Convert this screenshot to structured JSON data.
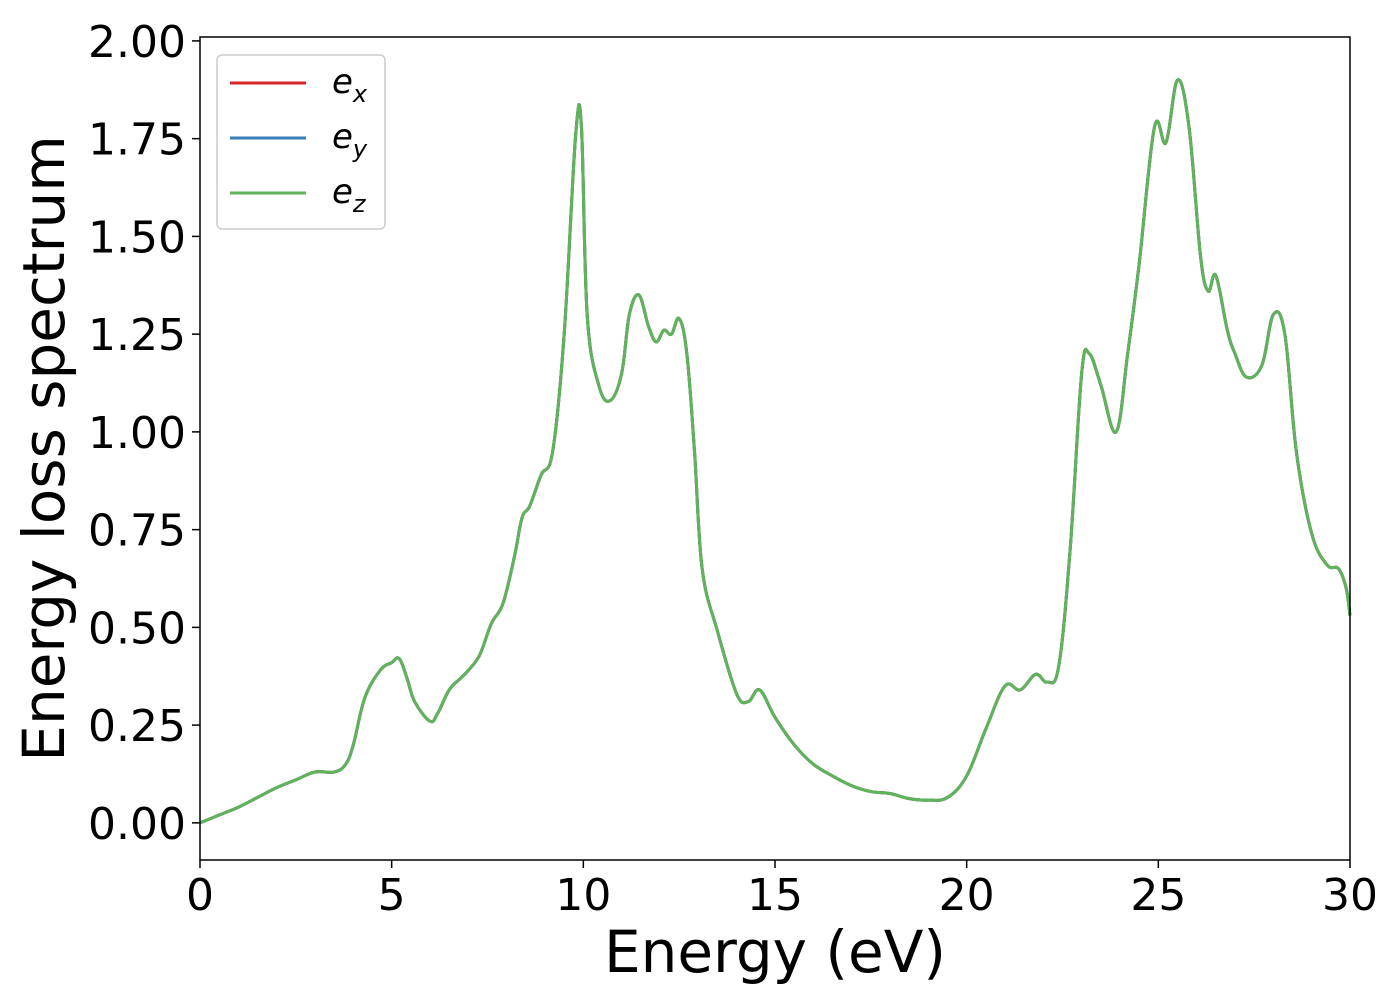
{
  "chart_data": {
    "type": "line",
    "title": "",
    "xlabel": "Energy (eV)",
    "ylabel": "Energy loss spectrum",
    "xlim": [
      0,
      30
    ],
    "ylim": [
      -0.095,
      2.01
    ],
    "xticks": [
      0,
      5,
      10,
      15,
      20,
      25,
      30
    ],
    "xtick_labels": [
      "0",
      "5",
      "10",
      "15",
      "20",
      "25",
      "30"
    ],
    "yticks": [
      0,
      0.25,
      0.5,
      0.75,
      1.0,
      1.25,
      1.5,
      1.75,
      2.0
    ],
    "ytick_labels": [
      "0.00",
      "0.25",
      "0.50",
      "0.75",
      "1.00",
      "1.25",
      "1.50",
      "1.75",
      "2.00"
    ],
    "grid": false,
    "legend_position": "top-left",
    "series": [
      {
        "name": "e_x",
        "legend_base": "e",
        "legend_sub": "x",
        "color": "#d62728",
        "x": [
          0,
          0.5,
          1,
          1.5,
          2,
          2.5,
          3,
          3.5,
          3.8,
          4,
          4.3,
          4.7,
          5,
          5.2,
          5.4,
          5.6,
          6,
          6.2,
          6.5,
          6.8,
          7,
          7.3,
          7.6,
          7.9,
          8.2,
          8.4,
          8.6,
          8.9,
          9.2,
          9.5,
          9.8,
          9.95,
          10.1,
          10.4,
          10.7,
          11,
          11.2,
          11.45,
          11.7,
          11.9,
          12.1,
          12.3,
          12.5,
          12.7,
          12.9,
          13.1,
          13.5,
          14,
          14.3,
          14.6,
          15,
          15.5,
          16,
          16.5,
          17,
          17.5,
          18,
          18.5,
          19,
          19.5,
          20,
          20.5,
          21,
          21.4,
          21.8,
          22.1,
          22.4,
          22.7,
          23,
          23.2,
          23.5,
          23.9,
          24.2,
          24.5,
          24.9,
          25.2,
          25.5,
          25.8,
          26.1,
          26.3,
          26.5,
          26.8,
          27,
          27.3,
          27.7,
          28,
          28.3,
          28.6,
          29,
          29.4,
          29.7,
          29.9,
          30
        ],
        "y": [
          0.0,
          0.02,
          0.04,
          0.065,
          0.09,
          0.11,
          0.13,
          0.13,
          0.15,
          0.2,
          0.32,
          0.39,
          0.41,
          0.42,
          0.37,
          0.31,
          0.26,
          0.28,
          0.34,
          0.37,
          0.39,
          0.43,
          0.51,
          0.56,
          0.68,
          0.78,
          0.81,
          0.89,
          0.95,
          1.25,
          1.76,
          1.78,
          1.3,
          1.12,
          1.08,
          1.15,
          1.3,
          1.35,
          1.27,
          1.23,
          1.26,
          1.25,
          1.29,
          1.2,
          0.95,
          0.65,
          0.49,
          0.33,
          0.31,
          0.34,
          0.27,
          0.2,
          0.15,
          0.12,
          0.095,
          0.08,
          0.075,
          0.062,
          0.058,
          0.065,
          0.12,
          0.24,
          0.35,
          0.34,
          0.38,
          0.36,
          0.4,
          0.7,
          1.15,
          1.2,
          1.12,
          1.0,
          1.2,
          1.43,
          1.78,
          1.74,
          1.9,
          1.78,
          1.45,
          1.36,
          1.4,
          1.26,
          1.2,
          1.14,
          1.17,
          1.3,
          1.25,
          0.95,
          0.74,
          0.66,
          0.65,
          0.6,
          0.53
        ]
      },
      {
        "name": "e_y",
        "legend_base": "e",
        "legend_sub": "y",
        "color": "#377eb8",
        "x": [
          0,
          0.5,
          1,
          1.5,
          2,
          2.5,
          3,
          3.5,
          3.8,
          4,
          4.3,
          4.7,
          5,
          5.2,
          5.4,
          5.6,
          6,
          6.2,
          6.5,
          6.8,
          7,
          7.3,
          7.6,
          7.9,
          8.2,
          8.4,
          8.6,
          8.9,
          9.2,
          9.5,
          9.8,
          9.95,
          10.1,
          10.4,
          10.7,
          11,
          11.2,
          11.45,
          11.7,
          11.9,
          12.1,
          12.3,
          12.5,
          12.7,
          12.9,
          13.1,
          13.5,
          14,
          14.3,
          14.6,
          15,
          15.5,
          16,
          16.5,
          17,
          17.5,
          18,
          18.5,
          19,
          19.5,
          20,
          20.5,
          21,
          21.4,
          21.8,
          22.1,
          22.4,
          22.7,
          23,
          23.2,
          23.5,
          23.9,
          24.2,
          24.5,
          24.9,
          25.2,
          25.5,
          25.8,
          26.1,
          26.3,
          26.5,
          26.8,
          27,
          27.3,
          27.7,
          28,
          28.3,
          28.6,
          29,
          29.4,
          29.7,
          29.9,
          30
        ],
        "y": [
          0.0,
          0.02,
          0.04,
          0.065,
          0.09,
          0.11,
          0.13,
          0.13,
          0.15,
          0.2,
          0.32,
          0.39,
          0.41,
          0.42,
          0.37,
          0.31,
          0.26,
          0.28,
          0.34,
          0.37,
          0.39,
          0.43,
          0.51,
          0.56,
          0.68,
          0.78,
          0.81,
          0.89,
          0.95,
          1.25,
          1.76,
          1.78,
          1.3,
          1.12,
          1.08,
          1.15,
          1.3,
          1.35,
          1.27,
          1.23,
          1.26,
          1.25,
          1.29,
          1.2,
          0.95,
          0.65,
          0.49,
          0.33,
          0.31,
          0.34,
          0.27,
          0.2,
          0.15,
          0.12,
          0.095,
          0.08,
          0.075,
          0.062,
          0.058,
          0.065,
          0.12,
          0.24,
          0.35,
          0.34,
          0.38,
          0.36,
          0.4,
          0.7,
          1.15,
          1.2,
          1.12,
          1.0,
          1.2,
          1.43,
          1.78,
          1.74,
          1.9,
          1.78,
          1.45,
          1.36,
          1.4,
          1.26,
          1.2,
          1.14,
          1.17,
          1.3,
          1.25,
          0.95,
          0.74,
          0.66,
          0.65,
          0.6,
          0.53
        ]
      },
      {
        "name": "e_z",
        "legend_base": "e",
        "legend_sub": "z",
        "color": "#5fb35a",
        "x": [
          0,
          0.5,
          1,
          1.5,
          2,
          2.5,
          3,
          3.5,
          3.8,
          4,
          4.3,
          4.7,
          5,
          5.2,
          5.4,
          5.6,
          6,
          6.2,
          6.5,
          6.8,
          7,
          7.3,
          7.6,
          7.9,
          8.2,
          8.4,
          8.6,
          8.9,
          9.2,
          9.5,
          9.8,
          9.95,
          10.1,
          10.4,
          10.7,
          11,
          11.2,
          11.45,
          11.7,
          11.9,
          12.1,
          12.3,
          12.5,
          12.7,
          12.9,
          13.1,
          13.5,
          14,
          14.3,
          14.6,
          15,
          15.5,
          16,
          16.5,
          17,
          17.5,
          18,
          18.5,
          19,
          19.5,
          20,
          20.5,
          21,
          21.4,
          21.8,
          22.1,
          22.4,
          22.7,
          23,
          23.2,
          23.5,
          23.9,
          24.2,
          24.5,
          24.9,
          25.2,
          25.5,
          25.8,
          26.1,
          26.3,
          26.5,
          26.8,
          27,
          27.3,
          27.7,
          28,
          28.3,
          28.6,
          29,
          29.4,
          29.7,
          29.9,
          30
        ],
        "y": [
          0.0,
          0.02,
          0.04,
          0.065,
          0.09,
          0.11,
          0.13,
          0.13,
          0.15,
          0.2,
          0.32,
          0.39,
          0.41,
          0.42,
          0.37,
          0.31,
          0.26,
          0.28,
          0.34,
          0.37,
          0.39,
          0.43,
          0.51,
          0.56,
          0.68,
          0.78,
          0.81,
          0.89,
          0.95,
          1.25,
          1.76,
          1.78,
          1.3,
          1.12,
          1.08,
          1.15,
          1.3,
          1.35,
          1.27,
          1.23,
          1.26,
          1.25,
          1.29,
          1.2,
          0.95,
          0.65,
          0.49,
          0.33,
          0.31,
          0.34,
          0.27,
          0.2,
          0.15,
          0.12,
          0.095,
          0.08,
          0.075,
          0.062,
          0.058,
          0.065,
          0.12,
          0.24,
          0.35,
          0.34,
          0.38,
          0.36,
          0.4,
          0.7,
          1.15,
          1.2,
          1.12,
          1.0,
          1.2,
          1.43,
          1.78,
          1.74,
          1.9,
          1.78,
          1.45,
          1.36,
          1.4,
          1.26,
          1.2,
          1.14,
          1.17,
          1.3,
          1.25,
          0.95,
          0.74,
          0.66,
          0.65,
          0.6,
          0.53
        ]
      }
    ]
  }
}
